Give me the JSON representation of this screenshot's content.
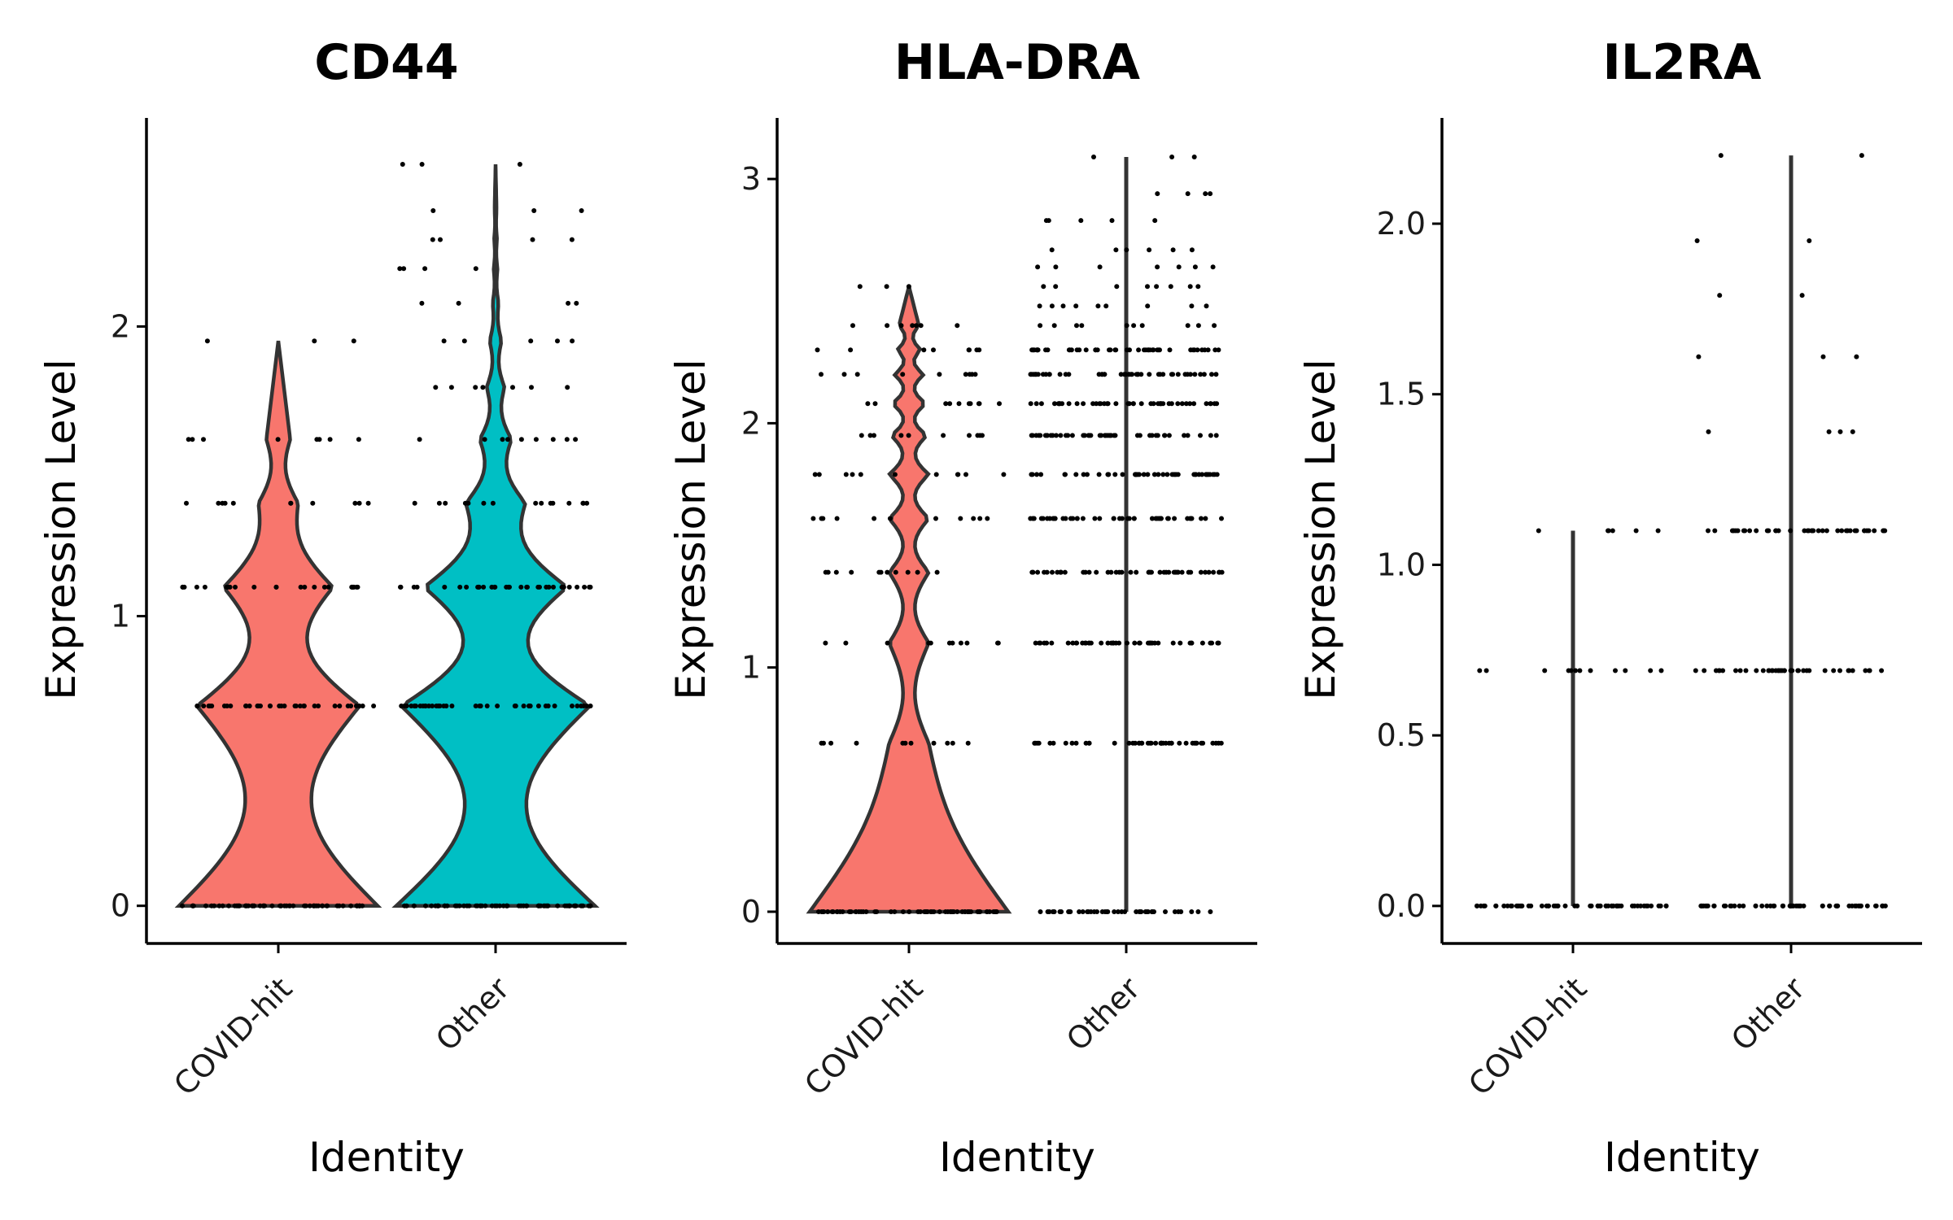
{
  "chart_data": [
    {
      "type": "violin",
      "title": "CD44",
      "xlabel": "Identity",
      "ylabel": "Expression Level",
      "categories": [
        "COVID-hit",
        "Other"
      ],
      "ylim": [
        -0.13,
        2.72
      ],
      "yticks": [
        0,
        1,
        2
      ],
      "ytick_labels": [
        "0",
        "1",
        "2"
      ],
      "series": [
        {
          "category": "COVID-hit",
          "color": "#F8766D",
          "violin": true,
          "max": 1.95,
          "levels": [
            0,
            0.69,
            1.1,
            1.39,
            1.61,
            1.95
          ],
          "density_rel": [
            1.0,
            0.82,
            0.55,
            0.2,
            0.12,
            0.0
          ]
        },
        {
          "category": "Other",
          "color": "#00BFC4",
          "violin": true,
          "max": 2.56,
          "levels": [
            0,
            0.69,
            1.1,
            1.39,
            1.61,
            1.79,
            1.95,
            2.08,
            2.2,
            2.3,
            2.4,
            2.56
          ],
          "density_rel": [
            1.0,
            0.95,
            0.72,
            0.3,
            0.16,
            0.09,
            0.06,
            0.03,
            0.02,
            0.015,
            0.01,
            0.0
          ]
        }
      ]
    },
    {
      "type": "violin",
      "title": "HLA-DRA",
      "xlabel": "Identity",
      "ylabel": "Expression Level",
      "categories": [
        "COVID-hit",
        "Other"
      ],
      "ylim": [
        -0.13,
        3.25
      ],
      "yticks": [
        0,
        1,
        2,
        3
      ],
      "ytick_labels": [
        "0",
        "1",
        "2",
        "3"
      ],
      "series": [
        {
          "category": "COVID-hit",
          "color": "#F8766D",
          "violin": true,
          "max": 2.56,
          "levels": [
            0,
            0.69,
            1.1,
            1.39,
            1.61,
            1.79,
            1.95,
            2.08,
            2.2,
            2.3,
            2.4,
            2.56
          ],
          "density_rel": [
            1.0,
            0.2,
            0.2,
            0.2,
            0.2,
            0.2,
            0.18,
            0.17,
            0.15,
            0.12,
            0.1,
            0.0
          ]
        },
        {
          "category": "Other",
          "color": "#000000",
          "violin": false,
          "max": 3.09,
          "levels": [
            0,
            0.69,
            1.1,
            1.39,
            1.61,
            1.79,
            1.95,
            2.08,
            2.2,
            2.3,
            2.4,
            2.48,
            2.56,
            2.64,
            2.71,
            2.83,
            2.94,
            3.09
          ],
          "density_rel": [
            1.0,
            0.0,
            0.0,
            0.0,
            0.0,
            0.0,
            0.0,
            0.0,
            0.0,
            0.0,
            0.0,
            0.0,
            0.0,
            0.0,
            0.0,
            0.0,
            0.0,
            0.0
          ]
        }
      ]
    },
    {
      "type": "violin",
      "title": "IL2RA",
      "xlabel": "Identity",
      "ylabel": "Expression Level",
      "categories": [
        "COVID-hit",
        "Other"
      ],
      "ylim": [
        -0.11,
        2.31
      ],
      "yticks": [
        0.0,
        0.5,
        1.0,
        1.5,
        2.0
      ],
      "ytick_labels": [
        "0.0",
        "0.5",
        "1.0",
        "1.5",
        "2.0"
      ],
      "series": [
        {
          "category": "COVID-hit",
          "color": "#000000",
          "violin": false,
          "max": 1.1,
          "levels": [
            0,
            0.69,
            1.1
          ],
          "density_rel": [
            1.0,
            0.0,
            0.0
          ]
        },
        {
          "category": "Other",
          "color": "#000000",
          "violin": false,
          "max": 2.2,
          "levels": [
            0,
            0.69,
            1.1,
            1.39,
            1.61,
            1.79,
            1.95,
            2.2
          ],
          "density_rel": [
            1.0,
            0.0,
            0.0,
            0.0,
            0.0,
            0.0,
            0.0,
            0.0
          ]
        }
      ]
    }
  ]
}
